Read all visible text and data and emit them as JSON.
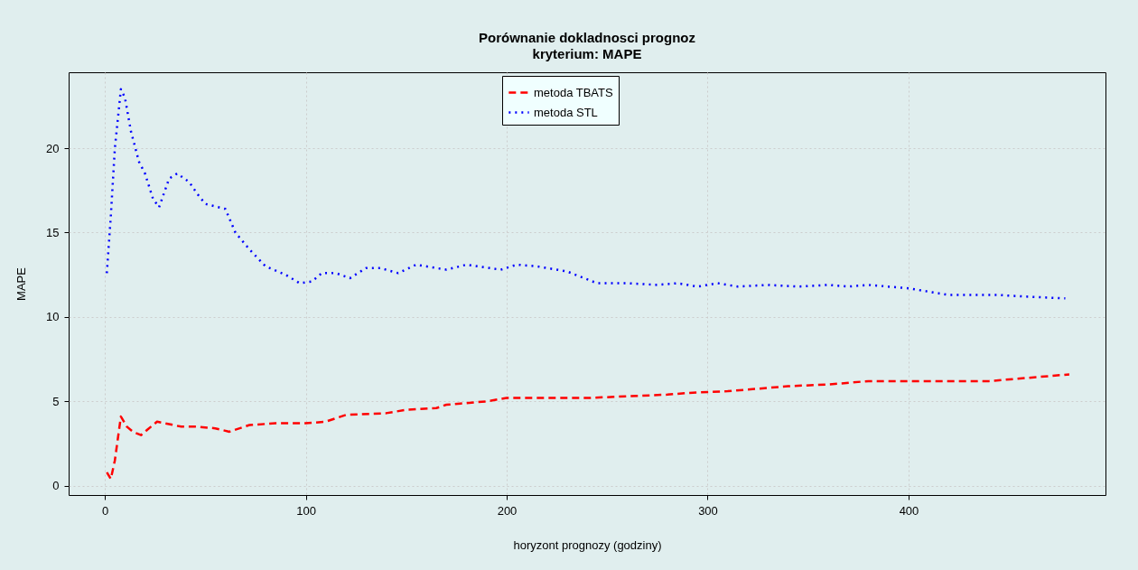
{
  "chart_data": {
    "type": "line",
    "title": "Porównanie dokladnosci prognoz",
    "subtitle": "kryterium: MAPE",
    "xlabel": "horyzont prognozy (godziny)",
    "ylabel": "MAPE",
    "xlim": [
      -18,
      498
    ],
    "ylim": [
      -0.55,
      24.5
    ],
    "xticks": [
      0,
      100,
      200,
      300,
      400
    ],
    "yticks": [
      0,
      5,
      10,
      15,
      20
    ],
    "grid": true,
    "legend": "top",
    "marker": "none",
    "series": [
      {
        "name": "metoda TBATS",
        "color": "#ff0000",
        "line_style": "dashed",
        "x": [
          1,
          3,
          5,
          8,
          11,
          14,
          18,
          21,
          26,
          30,
          38,
          46,
          55,
          62,
          72,
          85,
          100,
          110,
          120,
          140,
          150,
          165,
          170,
          190,
          200,
          220,
          240,
          260,
          280,
          290,
          310,
          320,
          340,
          360,
          380,
          400,
          440,
          460,
          480
        ],
        "values": [
          0.8,
          0.4,
          1.5,
          4.1,
          3.5,
          3.2,
          3.0,
          3.3,
          3.8,
          3.7,
          3.5,
          3.5,
          3.4,
          3.2,
          3.6,
          3.7,
          3.7,
          3.8,
          4.2,
          4.3,
          4.5,
          4.6,
          4.8,
          5.0,
          5.2,
          5.2,
          5.2,
          5.3,
          5.4,
          5.5,
          5.6,
          5.7,
          5.9,
          6.0,
          6.2,
          6.2,
          6.2,
          6.4,
          6.6
        ]
      },
      {
        "name": "metoda STL",
        "color": "#0000ff",
        "line_style": "dotted",
        "x": [
          1,
          3,
          5,
          8,
          10,
          13,
          17,
          20,
          24,
          27,
          32,
          36,
          42,
          46,
          50,
          60,
          65,
          72,
          80,
          90,
          97,
          103,
          108,
          115,
          122,
          130,
          137,
          146,
          155,
          170,
          180,
          197,
          205,
          215,
          230,
          245,
          260,
          275,
          285,
          295,
          305,
          315,
          330,
          345,
          360,
          370,
          380,
          400,
          420,
          445,
          460,
          478
        ],
        "values": [
          12.6,
          16,
          20,
          23.5,
          23,
          21,
          19.2,
          18.5,
          17,
          16.5,
          18.2,
          18.5,
          18,
          17.3,
          16.7,
          16.4,
          15,
          14,
          13,
          12.5,
          12.0,
          12.1,
          12.6,
          12.6,
          12.3,
          12.9,
          12.9,
          12.6,
          13.1,
          12.8,
          13.1,
          12.8,
          13.1,
          13.0,
          12.7,
          12.0,
          12.0,
          11.9,
          12.0,
          11.8,
          12.0,
          11.8,
          11.9,
          11.8,
          11.9,
          11.8,
          11.9,
          11.7,
          11.3,
          11.3,
          11.2,
          11.1
        ]
      }
    ]
  }
}
